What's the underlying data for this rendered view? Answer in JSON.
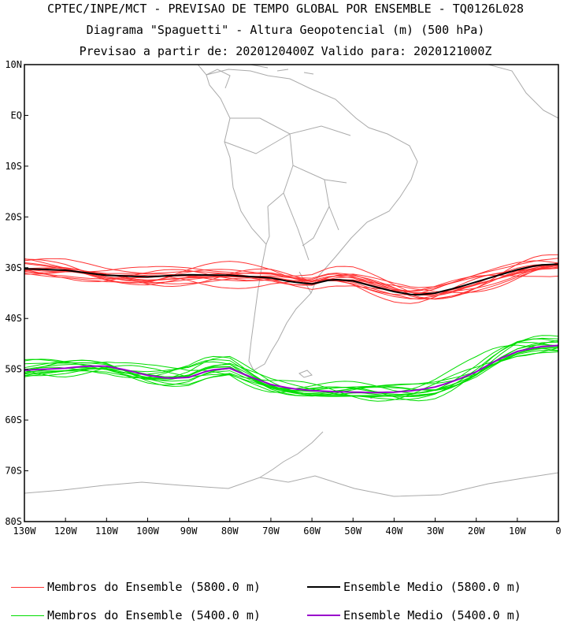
{
  "header": {
    "line1": "CPTEC/INPE/MCT - PREVISAO DE TEMPO GLOBAL POR ENSEMBLE - TQ0126L028",
    "line2": "Diagrama \"Spaguetti\" - Altura Geopotencial (m) (500 hPa)",
    "line3": "Previsao a partir de: 2020120400Z  Valido para: 2020121000Z"
  },
  "map": {
    "lat_ticks": [
      "10N",
      "EQ",
      "10S",
      "20S",
      "30S",
      "40S",
      "50S",
      "60S",
      "70S",
      "80S"
    ],
    "lat_values": [
      10,
      0,
      -10,
      -20,
      -30,
      -40,
      -50,
      -60,
      -70,
      -80
    ],
    "lon_ticks": [
      "130W",
      "120W",
      "110W",
      "100W",
      "90W",
      "80W",
      "70W",
      "60W",
      "50W",
      "40W",
      "30W",
      "20W",
      "10W",
      "0"
    ],
    "lon_values": [
      -130,
      -120,
      -110,
      -100,
      -90,
      -80,
      -70,
      -60,
      -50,
      -40,
      -30,
      -20,
      -10,
      0
    ],
    "lon_range": [
      -130,
      0
    ],
    "lat_range": [
      -80,
      10
    ],
    "colors": {
      "land_outline": "#aaaaaa",
      "members_5800": "#ff3333",
      "mean_5800": "#000000",
      "members_5400": "#00dd00",
      "mean_5400": "#9900cc"
    }
  },
  "contours": {
    "mean_5800": {
      "lon": [
        -130,
        -120,
        -110,
        -100,
        -90,
        -80,
        -70,
        -65,
        -60,
        -55,
        -50,
        -45,
        -40,
        -35,
        -30,
        -25,
        -20,
        -15,
        -10,
        -5,
        0
      ],
      "lat": [
        -30.2,
        -30.5,
        -31.5,
        -31.8,
        -31.4,
        -31.5,
        -32.0,
        -32.8,
        -33.2,
        -32.3,
        -32.6,
        -33.7,
        -34.7,
        -35.4,
        -35.0,
        -34.0,
        -32.8,
        -31.6,
        -30.4,
        -29.5,
        -29.3
      ]
    },
    "mean_5400": {
      "lon": [
        -130,
        -125,
        -120,
        -115,
        -110,
        -105,
        -100,
        -95,
        -90,
        -85,
        -80,
        -75,
        -70,
        -65,
        -60,
        -55,
        -50,
        -45,
        -40,
        -35,
        -30,
        -25,
        -20,
        -15,
        -10,
        -5,
        0
      ],
      "lat": [
        -50.2,
        -50.0,
        -49.8,
        -49.4,
        -49.4,
        -50.2,
        -51.2,
        -51.8,
        -51.6,
        -50.2,
        -49.8,
        -51.5,
        -53.0,
        -53.8,
        -54.2,
        -54.4,
        -54.5,
        -54.6,
        -54.5,
        -54.2,
        -53.5,
        -52.2,
        -50.5,
        -48.2,
        -46.5,
        -45.6,
        -45.3
      ]
    },
    "members_5800_count": 14,
    "members_5400_count": 14
  },
  "legend": {
    "members_5800": "Membros do Ensemble (5800.0 m)",
    "mean_5800": "Ensemble Medio (5800.0 m)",
    "members_5400": "Membros do Ensemble (5400.0 m)",
    "mean_5400": "Ensemble Medio (5400.0 m)"
  }
}
